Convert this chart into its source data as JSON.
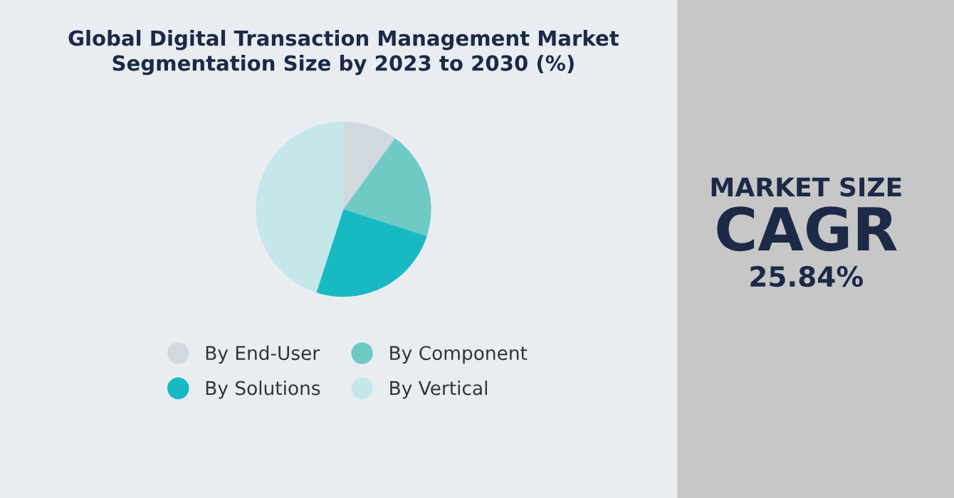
{
  "chart_data": [
    {
      "type": "pie",
      "title": "Global Digital Transaction Management Market\nSegmentation Size by 2023 to 2030 (%)",
      "categories": [
        "By End-User",
        "By Component",
        "By Solutions",
        "By Vertical"
      ],
      "values": [
        10,
        20,
        25,
        45
      ],
      "colors": [
        "#d1d9df",
        "#6fcac5",
        "#17bac2",
        "#c5e7ea"
      ],
      "legend": "bottom"
    },
    {
      "type": "other",
      "annotations": [
        "MARKET SIZE",
        "CAGR",
        "25.84%"
      ]
    }
  ]
}
